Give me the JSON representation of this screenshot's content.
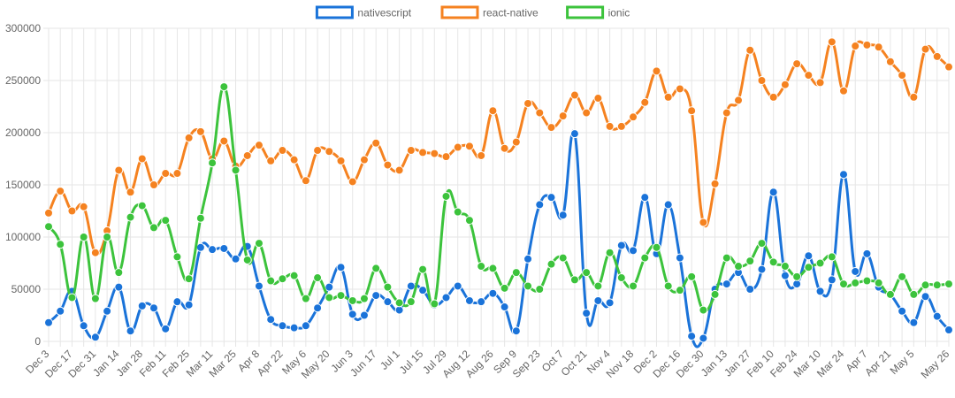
{
  "chart_data": {
    "type": "line",
    "title": "",
    "xlabel": "",
    "ylabel": "",
    "ylim": [
      0,
      300000
    ],
    "yticks": [
      0,
      50000,
      100000,
      150000,
      200000,
      250000,
      300000
    ],
    "ytick_labels": [
      "0",
      "50000",
      "100000",
      "150000",
      "200000",
      "250000",
      "300000"
    ],
    "legend_position": "top-center",
    "grid": true,
    "x": [
      "Dec 3",
      "Dec 10",
      "Dec 17",
      "Dec 24",
      "Dec 31",
      "Jan 7",
      "Jan 14",
      "Jan 21",
      "Jan 28",
      "Feb 4",
      "Feb 11",
      "Feb 18",
      "Feb 25",
      "Mar 4",
      "Mar 11",
      "Mar 18",
      "Mar 25",
      "Apr 1",
      "Apr 8",
      "Apr 15",
      "Apr 22",
      "Apr 29",
      "May 6",
      "May 13",
      "May 20",
      "May 27",
      "Jun 3",
      "Jun 10",
      "Jun 17",
      "Jun 24",
      "Jul 1",
      "Jul 8",
      "Jul 15",
      "Jul 22",
      "Jul 29",
      "Aug 5",
      "Aug 12",
      "Aug 19",
      "Aug 26",
      "Sep 2",
      "Sep 9",
      "Sep 16",
      "Sep 23",
      "Sep 30",
      "Oct 7",
      "Oct 14",
      "Oct 21",
      "Oct 28",
      "Nov 4",
      "Nov 11",
      "Nov 18",
      "Nov 25",
      "Dec 2",
      "Dec 9",
      "Dec 16",
      "Dec 23",
      "Dec 30",
      "Jan 6",
      "Jan 13",
      "Jan 20",
      "Jan 27",
      "Feb 3",
      "Feb 10",
      "Feb 17",
      "Feb 24",
      "Mar 3",
      "Mar 10",
      "Mar 17",
      "Mar 24",
      "Mar 31",
      "Apr 7",
      "Apr 14",
      "Apr 21",
      "Apr 28",
      "May 5",
      "May 12",
      "May 19",
      "May 26"
    ],
    "x_tick_labels": [
      "Dec 3",
      "Dec 17",
      "Dec 31",
      "Jan 14",
      "Jan 28",
      "Feb 11",
      "Feb 25",
      "Mar 11",
      "Mar 25",
      "Apr 8",
      "Apr 22",
      "May 6",
      "May 20",
      "Jun 3",
      "Jun 17",
      "Jul 1",
      "Jul 15",
      "Jul 29",
      "Aug 12",
      "Aug 26",
      "Sep 9",
      "Sep 23",
      "Oct 7",
      "Oct 21",
      "Nov 4",
      "Nov 18",
      "Dec 2",
      "Dec 16",
      "Dec 30",
      "Jan 13",
      "Jan 27",
      "Feb 10",
      "Feb 24",
      "Mar 10",
      "Mar 24",
      "Apr 7",
      "Apr 21",
      "May 5",
      "May 26"
    ],
    "series": [
      {
        "name": "nativescript",
        "color": "#1a73d9",
        "values": [
          18000,
          29000,
          48000,
          15000,
          4000,
          29000,
          52000,
          10000,
          34000,
          32000,
          12000,
          38000,
          35000,
          90000,
          88000,
          89000,
          79000,
          91000,
          53000,
          21000,
          15000,
          13000,
          15000,
          32000,
          52000,
          71000,
          26000,
          25000,
          44000,
          38000,
          30000,
          53000,
          49000,
          35000,
          42000,
          53000,
          39000,
          38000,
          46000,
          33000,
          10000,
          79000,
          131000,
          138000,
          121000,
          199000,
          27000,
          39000,
          37000,
          92000,
          87000,
          138000,
          84000,
          131000,
          80000,
          5000,
          3000,
          50000,
          55000,
          66000,
          50000,
          69000,
          143000,
          63000,
          55000,
          82000,
          48000,
          59000,
          160000,
          67000,
          84000,
          52000,
          45000,
          29000,
          18000,
          43000,
          24000,
          11000
        ]
      },
      {
        "name": "react-native",
        "color": "#f58220",
        "values": [
          123000,
          144000,
          125000,
          129000,
          85000,
          106000,
          164000,
          143000,
          175000,
          150000,
          161000,
          161000,
          195000,
          201000,
          175000,
          192000,
          168000,
          178000,
          188000,
          173000,
          183000,
          174000,
          154000,
          183000,
          182000,
          173000,
          153000,
          174000,
          190000,
          169000,
          164000,
          183000,
          181000,
          180000,
          177000,
          186000,
          187000,
          178000,
          221000,
          185000,
          191000,
          228000,
          219000,
          205000,
          216000,
          236000,
          219000,
          233000,
          206000,
          206000,
          215000,
          229000,
          259000,
          234000,
          242000,
          221000,
          114000,
          151000,
          219000,
          231000,
          279000,
          250000,
          234000,
          246000,
          266000,
          255000,
          248000,
          287000,
          240000,
          283000,
          284000,
          282000,
          268000,
          255000,
          234000,
          280000,
          273000,
          263000
        ]
      },
      {
        "name": "ionic",
        "color": "#3cc33c",
        "values": [
          110000,
          93000,
          42000,
          100000,
          41000,
          100000,
          66000,
          119000,
          130000,
          109000,
          116000,
          81000,
          60000,
          118000,
          171000,
          244000,
          164000,
          78000,
          94000,
          58000,
          60000,
          63000,
          41000,
          61000,
          42000,
          44000,
          39000,
          41000,
          70000,
          52000,
          37000,
          38000,
          69000,
          36000,
          139000,
          124000,
          116000,
          72000,
          70000,
          51000,
          66000,
          53000,
          50000,
          74000,
          80000,
          59000,
          66000,
          53000,
          85000,
          61000,
          53000,
          80000,
          90000,
          53000,
          49000,
          62000,
          30000,
          45000,
          80000,
          72000,
          77000,
          94000,
          76000,
          72000,
          62000,
          71000,
          75000,
          81000,
          55000,
          56000,
          58000,
          56000,
          45000,
          62000,
          45000,
          54000,
          54000,
          55000
        ]
      }
    ]
  }
}
